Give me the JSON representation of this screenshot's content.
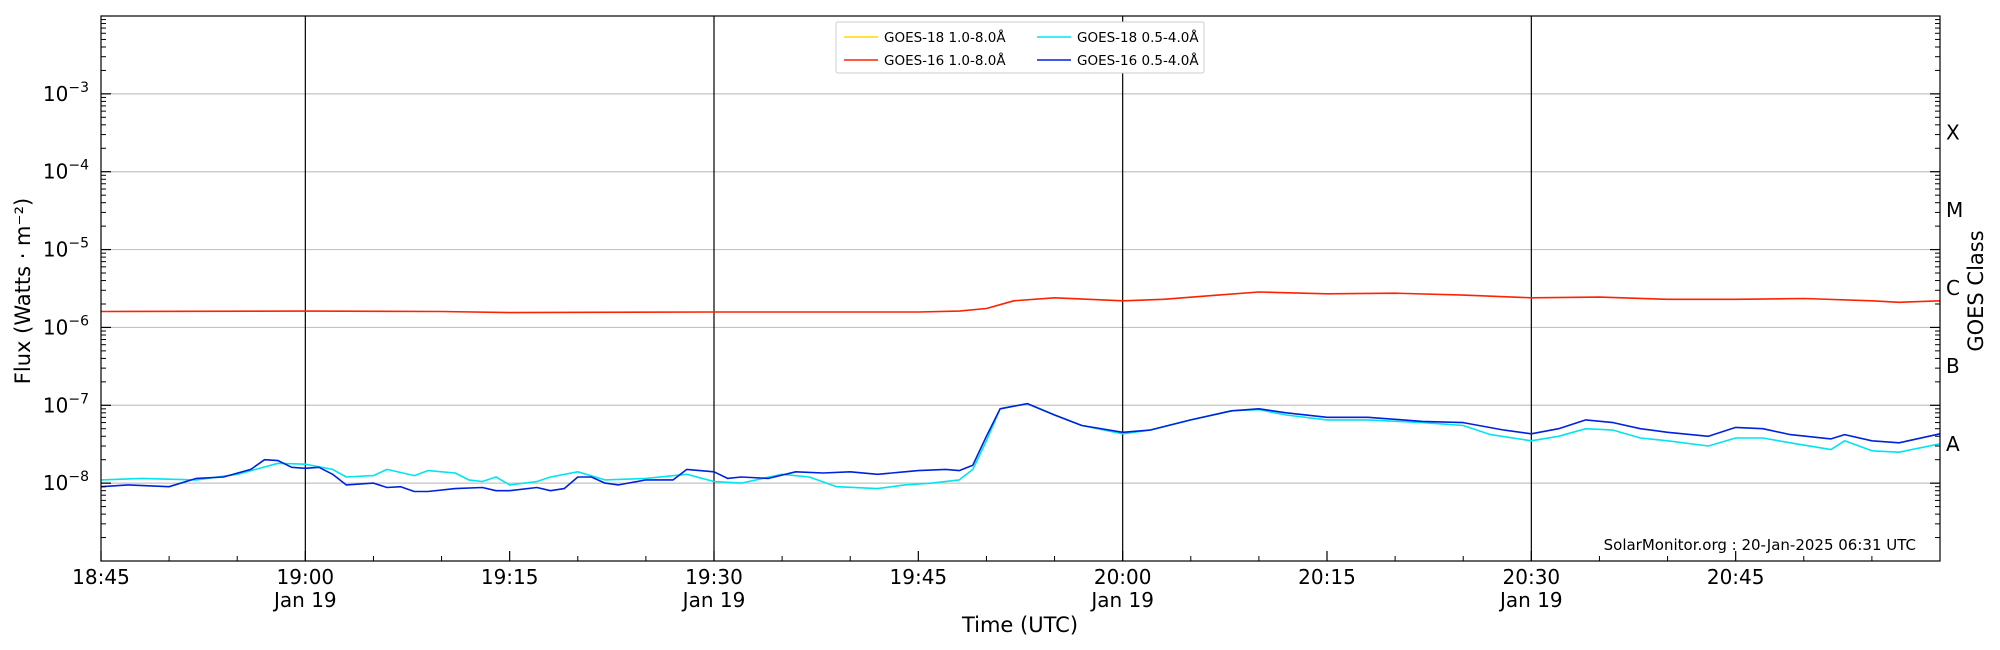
{
  "chart_data": {
    "type": "line",
    "xlabel": "Time (UTC)",
    "ylabel": "Flux (Watts · m⁻²)",
    "ylabel_right": "GOES Class",
    "xlim": [
      "18:45",
      "21:00"
    ],
    "ylim": [
      1e-09,
      0.01
    ],
    "yscale": "log",
    "grid": "horizontal at decades; vertical black lines at half-hours",
    "legend_position": "top-center",
    "x_ticks": [
      {
        "time": "18:45",
        "line1": "18:45",
        "line2": ""
      },
      {
        "time": "19:00",
        "line1": "19:00",
        "line2": "Jan 19"
      },
      {
        "time": "19:15",
        "line1": "19:15",
        "line2": ""
      },
      {
        "time": "19:30",
        "line1": "19:30",
        "line2": "Jan 19"
      },
      {
        "time": "19:45",
        "line1": "19:45",
        "line2": ""
      },
      {
        "time": "20:00",
        "line1": "20:00",
        "line2": "Jan 19"
      },
      {
        "time": "20:15",
        "line1": "20:15",
        "line2": ""
      },
      {
        "time": "20:30",
        "line1": "20:30",
        "line2": "Jan 19"
      },
      {
        "time": "20:45",
        "line1": "20:45",
        "line2": ""
      }
    ],
    "vertical_lines": [
      "19:00",
      "19:30",
      "20:00",
      "20:30"
    ],
    "y_ticks": [
      {
        "value": 1e-08,
        "exp": "−8"
      },
      {
        "value": 1e-07,
        "exp": "−7"
      },
      {
        "value": 1e-06,
        "exp": "−6"
      },
      {
        "value": 1e-05,
        "exp": "−5"
      },
      {
        "value": 0.0001,
        "exp": "−4"
      },
      {
        "value": 0.001,
        "exp": "−3"
      }
    ],
    "goes_classes": [
      {
        "label": "A",
        "value": 3.2e-08
      },
      {
        "label": "B",
        "value": 3.2e-07
      },
      {
        "label": "C",
        "value": 3.2e-06
      },
      {
        "label": "M",
        "value": 3.2e-05
      },
      {
        "label": "X",
        "value": 0.00032
      }
    ],
    "series": [
      {
        "name": "GOES-18 1.0-8.0Å",
        "color": "#ffd700",
        "points": []
      },
      {
        "name": "GOES-16 1.0-8.0Å",
        "color": "#ff2200",
        "points": [
          [
            "18:45",
            1.6e-06
          ],
          [
            "19:00",
            1.62e-06
          ],
          [
            "19:10",
            1.6e-06
          ],
          [
            "19:15",
            1.55e-06
          ],
          [
            "19:30",
            1.58e-06
          ],
          [
            "19:45",
            1.58e-06
          ],
          [
            "19:48",
            1.62e-06
          ],
          [
            "19:50",
            1.75e-06
          ],
          [
            "19:52",
            2.2e-06
          ],
          [
            "19:55",
            2.4e-06
          ],
          [
            "20:00",
            2.2e-06
          ],
          [
            "20:03",
            2.3e-06
          ],
          [
            "20:07",
            2.6e-06
          ],
          [
            "20:10",
            2.85e-06
          ],
          [
            "20:15",
            2.7e-06
          ],
          [
            "20:20",
            2.75e-06
          ],
          [
            "20:25",
            2.6e-06
          ],
          [
            "20:30",
            2.4e-06
          ],
          [
            "20:35",
            2.45e-06
          ],
          [
            "20:40",
            2.3e-06
          ],
          [
            "20:45",
            2.3e-06
          ],
          [
            "20:50",
            2.35e-06
          ],
          [
            "20:55",
            2.2e-06
          ],
          [
            "20:57",
            2.1e-06
          ],
          [
            "21:00",
            2.2e-06
          ]
        ]
      },
      {
        "name": "GOES-18 0.5-4.0Å",
        "color": "#00e5ee",
        "points": [
          [
            "18:45",
            1.1e-08
          ],
          [
            "18:48",
            1.15e-08
          ],
          [
            "18:52",
            1.1e-08
          ],
          [
            "18:55",
            1.3e-08
          ],
          [
            "18:58",
            1.8e-08
          ],
          [
            "19:00",
            1.75e-08
          ],
          [
            "19:02",
            1.5e-08
          ],
          [
            "19:03",
            1.2e-08
          ],
          [
            "19:05",
            1.25e-08
          ],
          [
            "19:06",
            1.5e-08
          ],
          [
            "19:08",
            1.25e-08
          ],
          [
            "19:09",
            1.45e-08
          ],
          [
            "19:11",
            1.35e-08
          ],
          [
            "19:12",
            1.1e-08
          ],
          [
            "19:13",
            1.05e-08
          ],
          [
            "19:14",
            1.2e-08
          ],
          [
            "19:15",
            9.5e-09
          ],
          [
            "19:17",
            1.05e-08
          ],
          [
            "19:18",
            1.2e-08
          ],
          [
            "19:20",
            1.4e-08
          ],
          [
            "19:22",
            1.1e-08
          ],
          [
            "19:25",
            1.15e-08
          ],
          [
            "19:28",
            1.3e-08
          ],
          [
            "19:30",
            1.05e-08
          ],
          [
            "19:32",
            1e-08
          ],
          [
            "19:35",
            1.3e-08
          ],
          [
            "19:37",
            1.2e-08
          ],
          [
            "19:39",
            9e-09
          ],
          [
            "19:42",
            8.5e-09
          ],
          [
            "19:44",
            9.5e-09
          ],
          [
            "19:46",
            1e-08
          ],
          [
            "19:48",
            1.1e-08
          ],
          [
            "19:49",
            1.5e-08
          ],
          [
            "19:50",
            3.5e-08
          ],
          [
            "19:51",
            9e-08
          ],
          [
            "19:53",
            1.05e-07
          ],
          [
            "19:55",
            7.5e-08
          ],
          [
            "19:57",
            5.5e-08
          ],
          [
            "20:00",
            4.3e-08
          ],
          [
            "20:02",
            4.8e-08
          ],
          [
            "20:05",
            6.5e-08
          ],
          [
            "20:08",
            8.5e-08
          ],
          [
            "20:10",
            8.8e-08
          ],
          [
            "20:12",
            7.5e-08
          ],
          [
            "20:15",
            6.5e-08
          ],
          [
            "20:18",
            6.5e-08
          ],
          [
            "20:22",
            6e-08
          ],
          [
            "20:25",
            5.5e-08
          ],
          [
            "20:27",
            4.2e-08
          ],
          [
            "20:30",
            3.5e-08
          ],
          [
            "20:32",
            4e-08
          ],
          [
            "20:34",
            5e-08
          ],
          [
            "20:36",
            4.8e-08
          ],
          [
            "20:38",
            3.8e-08
          ],
          [
            "20:40",
            3.5e-08
          ],
          [
            "20:43",
            3e-08
          ],
          [
            "20:45",
            3.8e-08
          ],
          [
            "20:47",
            3.8e-08
          ],
          [
            "20:49",
            3.3e-08
          ],
          [
            "20:52",
            2.7e-08
          ],
          [
            "20:53",
            3.5e-08
          ],
          [
            "20:55",
            2.6e-08
          ],
          [
            "20:57",
            2.5e-08
          ],
          [
            "21:00",
            3.2e-08
          ]
        ]
      },
      {
        "name": "GOES-16 0.5-4.0Å",
        "color": "#0022dd",
        "points": [
          [
            "18:45",
            9e-09
          ],
          [
            "18:47",
            9.5e-09
          ],
          [
            "18:50",
            9e-09
          ],
          [
            "18:52",
            1.15e-08
          ],
          [
            "18:54",
            1.2e-08
          ],
          [
            "18:56",
            1.5e-08
          ],
          [
            "18:57",
            2e-08
          ],
          [
            "18:58",
            1.95e-08
          ],
          [
            "18:59",
            1.6e-08
          ],
          [
            "19:00",
            1.55e-08
          ],
          [
            "19:01",
            1.6e-08
          ],
          [
            "19:02",
            1.3e-08
          ],
          [
            "19:03",
            9.5e-09
          ],
          [
            "19:05",
            1e-08
          ],
          [
            "19:06",
            8.8e-09
          ],
          [
            "19:07",
            9e-09
          ],
          [
            "19:08",
            7.8e-09
          ],
          [
            "19:09",
            7.8e-09
          ],
          [
            "19:11",
            8.5e-09
          ],
          [
            "19:13",
            8.8e-09
          ],
          [
            "19:14",
            8e-09
          ],
          [
            "19:15",
            8e-09
          ],
          [
            "19:17",
            8.8e-09
          ],
          [
            "19:18",
            8e-09
          ],
          [
            "19:19",
            8.5e-09
          ],
          [
            "19:20",
            1.2e-08
          ],
          [
            "19:21",
            1.2e-08
          ],
          [
            "19:22",
            1e-08
          ],
          [
            "19:23",
            9.5e-09
          ],
          [
            "19:25",
            1.1e-08
          ],
          [
            "19:27",
            1.1e-08
          ],
          [
            "19:28",
            1.5e-08
          ],
          [
            "19:30",
            1.4e-08
          ],
          [
            "19:31",
            1.15e-08
          ],
          [
            "19:32",
            1.2e-08
          ],
          [
            "19:34",
            1.15e-08
          ],
          [
            "19:36",
            1.4e-08
          ],
          [
            "19:38",
            1.35e-08
          ],
          [
            "19:40",
            1.4e-08
          ],
          [
            "19:42",
            1.3e-08
          ],
          [
            "19:44",
            1.4e-08
          ],
          [
            "19:45",
            1.45e-08
          ],
          [
            "19:47",
            1.5e-08
          ],
          [
            "19:48",
            1.45e-08
          ],
          [
            "19:49",
            1.7e-08
          ],
          [
            "19:50",
            4e-08
          ],
          [
            "19:51",
            9e-08
          ],
          [
            "19:53",
            1.05e-07
          ],
          [
            "19:55",
            7.5e-08
          ],
          [
            "19:57",
            5.5e-08
          ],
          [
            "20:00",
            4.5e-08
          ],
          [
            "20:02",
            4.8e-08
          ],
          [
            "20:05",
            6.5e-08
          ],
          [
            "20:08",
            8.5e-08
          ],
          [
            "20:10",
            9e-08
          ],
          [
            "20:12",
            8e-08
          ],
          [
            "20:15",
            7e-08
          ],
          [
            "20:18",
            7e-08
          ],
          [
            "20:22",
            6.2e-08
          ],
          [
            "20:25",
            6e-08
          ],
          [
            "20:28",
            4.8e-08
          ],
          [
            "20:30",
            4.3e-08
          ],
          [
            "20:32",
            5e-08
          ],
          [
            "20:34",
            6.5e-08
          ],
          [
            "20:36",
            6e-08
          ],
          [
            "20:38",
            5e-08
          ],
          [
            "20:40",
            4.5e-08
          ],
          [
            "20:43",
            4e-08
          ],
          [
            "20:45",
            5.2e-08
          ],
          [
            "20:47",
            5e-08
          ],
          [
            "20:49",
            4.2e-08
          ],
          [
            "20:52",
            3.7e-08
          ],
          [
            "20:53",
            4.2e-08
          ],
          [
            "20:55",
            3.5e-08
          ],
          [
            "20:57",
            3.3e-08
          ],
          [
            "21:00",
            4.3e-08
          ]
        ]
      }
    ],
    "annotation": "SolarMonitor.org : 20-Jan-2025 06:31 UTC"
  }
}
